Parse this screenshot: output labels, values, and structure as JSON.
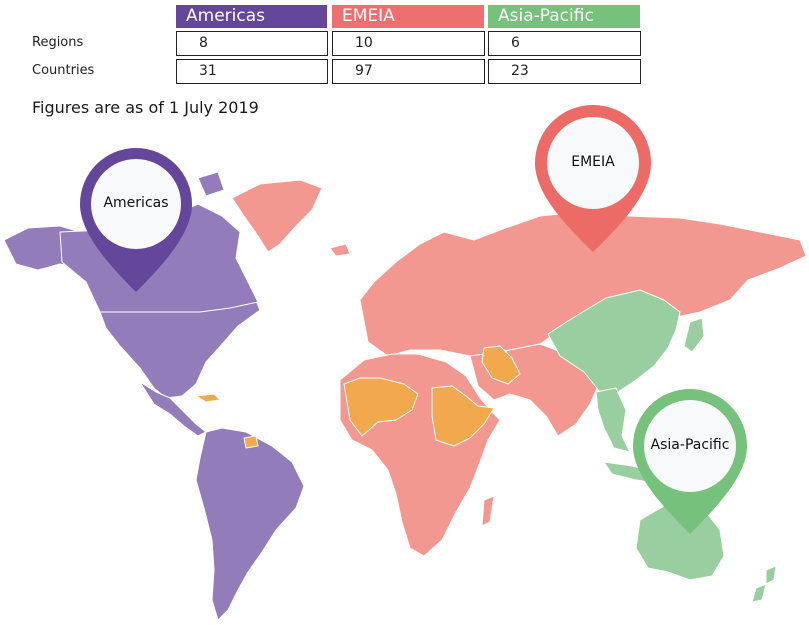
{
  "legend": {
    "columns": [
      {
        "name": "Americas",
        "color": "#64479a"
      },
      {
        "name": "EMEIA",
        "color": "#ee6f6f"
      },
      {
        "name": "Asia-Pacific",
        "color": "#76c17b"
      }
    ],
    "rows": [
      {
        "label": "Regions",
        "values": [
          "8",
          "10",
          "6"
        ]
      },
      {
        "label": "Countries",
        "values": [
          "31",
          "97",
          "23"
        ]
      }
    ]
  },
  "note": "Figures are as of 1 July 2019",
  "map": {
    "colors": {
      "americas_fill": "#927cb9",
      "emeia_fill": "#f29891",
      "asia_fill": "#99cfa0",
      "highlight_fill": "#f2a94d",
      "border": "#ffffff"
    },
    "pins": [
      {
        "label": "Americas",
        "color": "#64479a"
      },
      {
        "label": "EMEIA",
        "color": "#ec6b67"
      },
      {
        "label": "Asia-Pacific",
        "color": "#76c17b"
      }
    ]
  }
}
